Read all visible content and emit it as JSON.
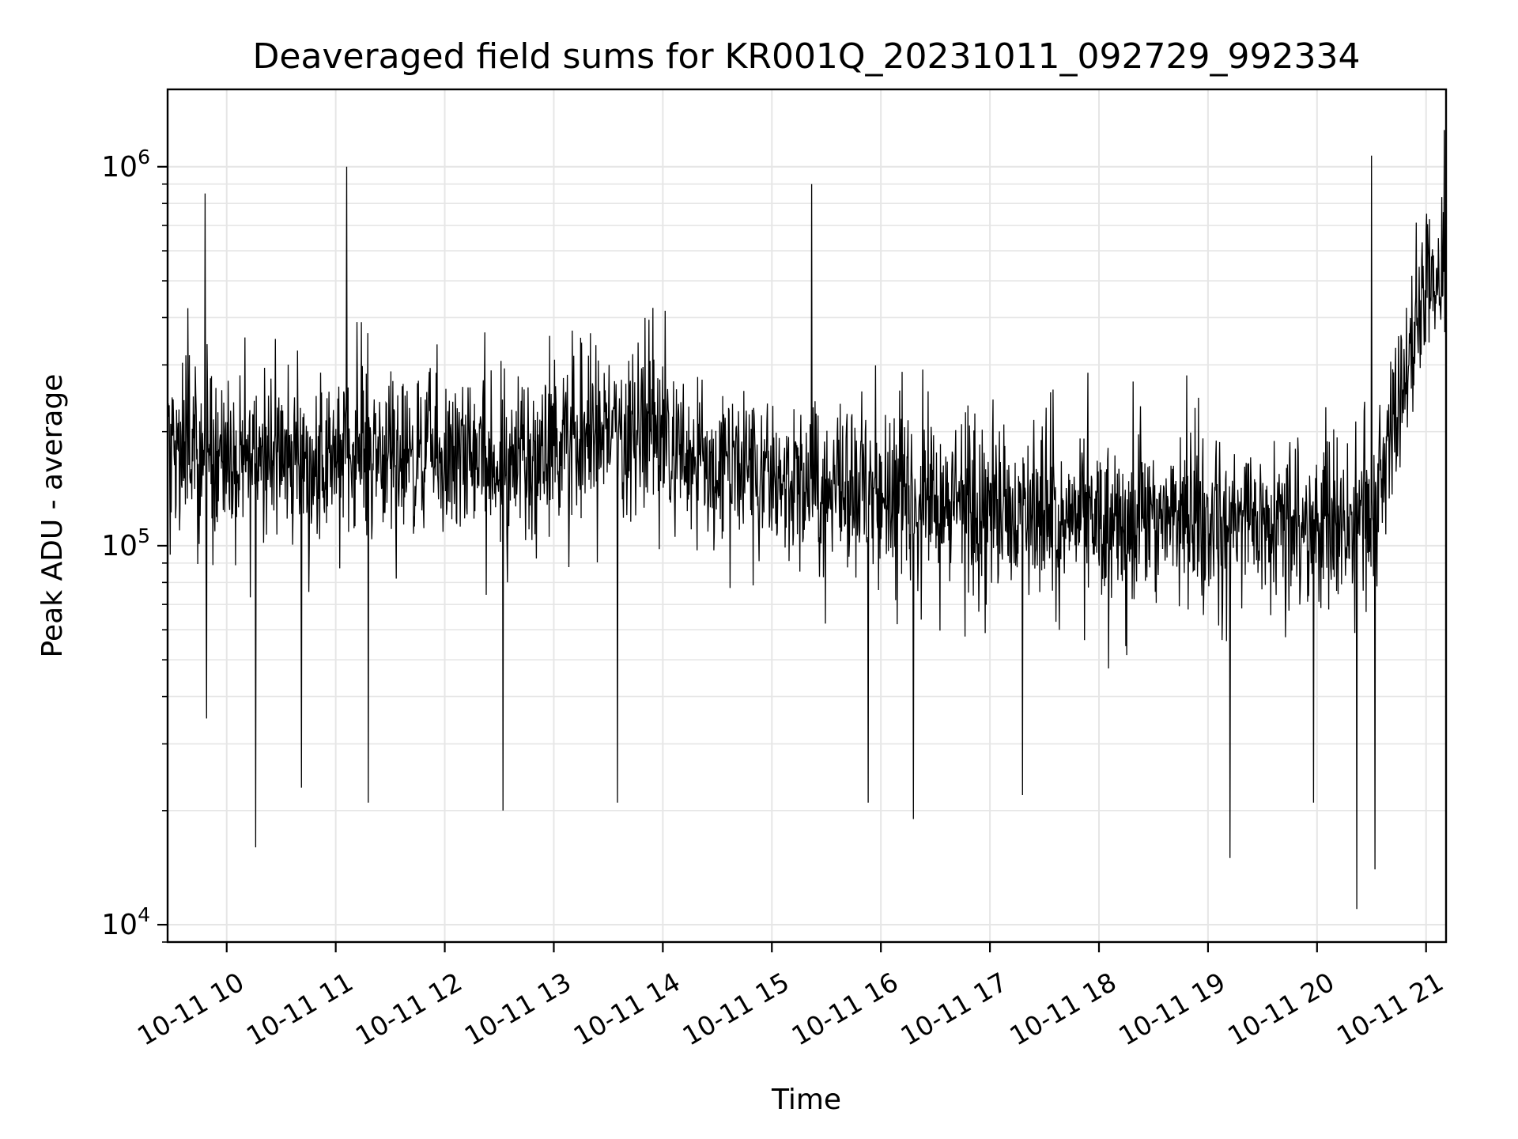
{
  "chart_data": {
    "type": "line",
    "title": "Deaveraged field sums for KR001Q_20231011_092729_992334",
    "xlabel": "Time",
    "ylabel": "Peak ADU - average",
    "yscale": "log",
    "ylim": [
      9000,
      1600000
    ],
    "xlim": [
      "2023-10-11 09:27:29",
      "2023-10-11 21:11:00"
    ],
    "grid": true,
    "line_color": "#000000",
    "grid_color": "#e6e6e6",
    "x_ticks": [
      {
        "value": "2023-10-11 10:00",
        "label": "10-11 10"
      },
      {
        "value": "2023-10-11 11:00",
        "label": "10-11 11"
      },
      {
        "value": "2023-10-11 12:00",
        "label": "10-11 12"
      },
      {
        "value": "2023-10-11 13:00",
        "label": "10-11 13"
      },
      {
        "value": "2023-10-11 14:00",
        "label": "10-11 14"
      },
      {
        "value": "2023-10-11 15:00",
        "label": "10-11 15"
      },
      {
        "value": "2023-10-11 16:00",
        "label": "10-11 16"
      },
      {
        "value": "2023-10-11 17:00",
        "label": "10-11 17"
      },
      {
        "value": "2023-10-11 18:00",
        "label": "10-11 18"
      },
      {
        "value": "2023-10-11 19:00",
        "label": "10-11 19"
      },
      {
        "value": "2023-10-11 20:00",
        "label": "10-11 20"
      },
      {
        "value": "2023-10-11 21:00",
        "label": "10-11 21"
      }
    ],
    "y_ticks": [
      {
        "value": 10000,
        "base": "10",
        "exp": "4"
      },
      {
        "value": 100000,
        "base": "10",
        "exp": "5"
      },
      {
        "value": 1000000,
        "base": "10",
        "exp": "6"
      }
    ],
    "series": [
      {
        "x": [
          "2023-10-11 09:30",
          "2023-10-11 10:00",
          "2023-10-11 10:30",
          "2023-10-11 11:00",
          "2023-10-11 11:30",
          "2023-10-11 12:00",
          "2023-10-11 12:30",
          "2023-10-11 13:00",
          "2023-10-11 13:30",
          "2023-10-11 14:00",
          "2023-10-11 14:30",
          "2023-10-11 15:00",
          "2023-10-11 15:30",
          "2023-10-11 16:00",
          "2023-10-11 16:30",
          "2023-10-11 17:00",
          "2023-10-11 17:30",
          "2023-10-11 18:00",
          "2023-10-11 18:30",
          "2023-10-11 19:00",
          "2023-10-11 19:30",
          "2023-10-11 20:00",
          "2023-10-11 20:30",
          "2023-10-11 20:45",
          "2023-10-11 21:00",
          "2023-10-11 21:10"
        ],
        "y": [
          200000,
          170000,
          165000,
          170000,
          175000,
          165000,
          160000,
          180000,
          200000,
          190000,
          170000,
          150000,
          140000,
          135000,
          130000,
          125000,
          120000,
          120000,
          118000,
          120000,
          118000,
          115000,
          120000,
          250000,
          450000,
          480000
        ],
        "spread_low": [
          90000,
          80000,
          80000,
          80000,
          85000,
          80000,
          75000,
          85000,
          95000,
          90000,
          80000,
          70000,
          65000,
          62000,
          60000,
          58000,
          56000,
          56000,
          55000,
          56000,
          55000,
          50000,
          55000,
          120000,
          300000,
          320000
        ],
        "spread_high": [
          420000,
          380000,
          360000,
          380000,
          390000,
          360000,
          350000,
          400000,
          440000,
          420000,
          370000,
          320000,
          300000,
          290000,
          280000,
          270000,
          260000,
          260000,
          255000,
          260000,
          255000,
          250000,
          260000,
          600000,
          900000,
          950000
        ],
        "extremes": [
          {
            "x": "2023-10-11 09:49",
            "y": 35000
          },
          {
            "x": "2023-10-11 09:48",
            "y": 850000
          },
          {
            "x": "2023-10-11 10:16",
            "y": 16000
          },
          {
            "x": "2023-10-11 10:41",
            "y": 23000
          },
          {
            "x": "2023-10-11 11:06",
            "y": 1000000
          },
          {
            "x": "2023-10-11 11:18",
            "y": 21000
          },
          {
            "x": "2023-10-11 12:32",
            "y": 20000
          },
          {
            "x": "2023-10-11 13:35",
            "y": 21000
          },
          {
            "x": "2023-10-11 15:22",
            "y": 900000
          },
          {
            "x": "2023-10-11 15:53",
            "y": 21000
          },
          {
            "x": "2023-10-11 16:18",
            "y": 19000
          },
          {
            "x": "2023-10-11 17:18",
            "y": 22000
          },
          {
            "x": "2023-10-11 19:12",
            "y": 15000
          },
          {
            "x": "2023-10-11 19:58",
            "y": 21000
          },
          {
            "x": "2023-10-11 20:22",
            "y": 11000
          },
          {
            "x": "2023-10-11 20:32",
            "y": 14000
          },
          {
            "x": "2023-10-11 20:30",
            "y": 1070000
          },
          {
            "x": "2023-10-11 21:10",
            "y": 1250000
          }
        ]
      }
    ]
  }
}
